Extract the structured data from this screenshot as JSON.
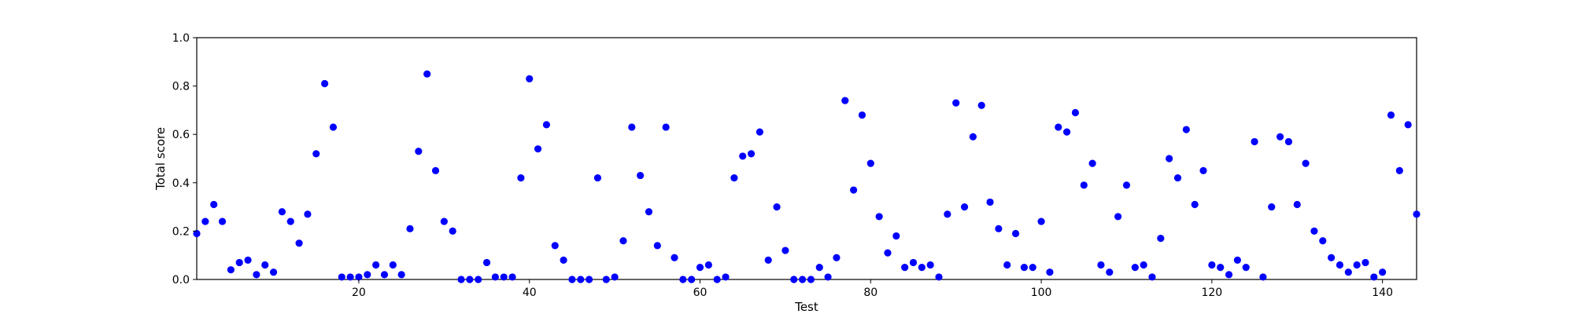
{
  "chart_data": {
    "type": "scatter",
    "title": "",
    "xlabel": "Test",
    "ylabel": "Total score",
    "xlim": [
      1,
      144
    ],
    "ylim": [
      0.0,
      1.0
    ],
    "xticks": [
      20,
      40,
      60,
      80,
      100,
      120,
      140
    ],
    "yticks": [
      0.0,
      0.2,
      0.4,
      0.6,
      0.8,
      1.0
    ],
    "xtick_labels": [
      "20",
      "40",
      "60",
      "80",
      "100",
      "120",
      "140"
    ],
    "ytick_labels": [
      "0.0",
      "0.2",
      "0.4",
      "0.6",
      "0.8",
      "1.0"
    ],
    "grid": false,
    "legend": "none",
    "marker_color": "#0000ff",
    "x": [
      1,
      2,
      3,
      4,
      5,
      6,
      7,
      8,
      9,
      10,
      11,
      12,
      13,
      14,
      15,
      16,
      17,
      18,
      19,
      20,
      21,
      22,
      23,
      24,
      25,
      26,
      27,
      28,
      29,
      30,
      31,
      32,
      33,
      34,
      35,
      36,
      37,
      38,
      39,
      40,
      41,
      42,
      43,
      44,
      45,
      46,
      47,
      48,
      49,
      50,
      51,
      52,
      53,
      54,
      55,
      56,
      57,
      58,
      59,
      60,
      61,
      62,
      63,
      64,
      65,
      66,
      67,
      68,
      69,
      70,
      71,
      72,
      73,
      74,
      75,
      76,
      77,
      78,
      79,
      80,
      81,
      82,
      83,
      84,
      85,
      86,
      87,
      88,
      89,
      90,
      91,
      92,
      93,
      94,
      95,
      96,
      97,
      98,
      99,
      100,
      101,
      102,
      103,
      104,
      105,
      106,
      107,
      108,
      109,
      110,
      111,
      112,
      113,
      114,
      115,
      116,
      117,
      118,
      119,
      120,
      121,
      122,
      123,
      124,
      125,
      126,
      127,
      128,
      129,
      130,
      131,
      132,
      133,
      134,
      135,
      136,
      137,
      138,
      139,
      140,
      141,
      142,
      143,
      144
    ],
    "y": [
      0.19,
      0.24,
      0.31,
      0.24,
      0.04,
      0.07,
      0.08,
      0.02,
      0.06,
      0.03,
      0.28,
      0.24,
      0.15,
      0.27,
      0.52,
      0.81,
      0.63,
      0.01,
      0.01,
      0.01,
      0.02,
      0.06,
      0.02,
      0.06,
      0.02,
      0.21,
      0.53,
      0.85,
      0.45,
      0.24,
      0.2,
      0.0,
      0.0,
      0.0,
      0.07,
      0.01,
      0.01,
      0.01,
      0.42,
      0.83,
      0.54,
      0.64,
      0.14,
      0.08,
      0.0,
      0.0,
      0.0,
      0.42,
      0.0,
      0.01,
      0.16,
      0.63,
      0.43,
      0.28,
      0.14,
      0.63,
      0.09,
      0.0,
      0.0,
      0.05,
      0.06,
      0.0,
      0.01,
      0.42,
      0.51,
      0.52,
      0.61,
      0.08,
      0.3,
      0.12,
      0.0,
      0.0,
      0.0,
      0.05,
      0.01,
      0.09,
      0.74,
      0.37,
      0.68,
      0.48,
      0.26,
      0.11,
      0.18,
      0.05,
      0.07,
      0.05,
      0.06,
      0.01,
      0.27,
      0.73,
      0.3,
      0.59,
      0.72,
      0.32,
      0.21,
      0.06,
      0.19,
      0.05,
      0.05,
      0.24,
      0.03,
      0.63,
      0.61,
      0.69,
      0.39,
      0.48,
      0.06,
      0.03,
      0.26,
      0.39,
      0.05,
      0.06,
      0.01,
      0.17,
      0.5,
      0.42,
      0.62,
      0.31,
      0.45,
      0.06,
      0.05,
      0.02,
      0.08,
      0.05,
      0.57,
      0.01,
      0.3,
      0.59,
      0.57,
      0.31,
      0.48,
      0.2,
      0.16,
      0.09,
      0.06,
      0.03,
      0.06,
      0.07,
      0.01,
      0.03,
      0.68,
      0.45,
      0.64,
      0.27
    ]
  }
}
